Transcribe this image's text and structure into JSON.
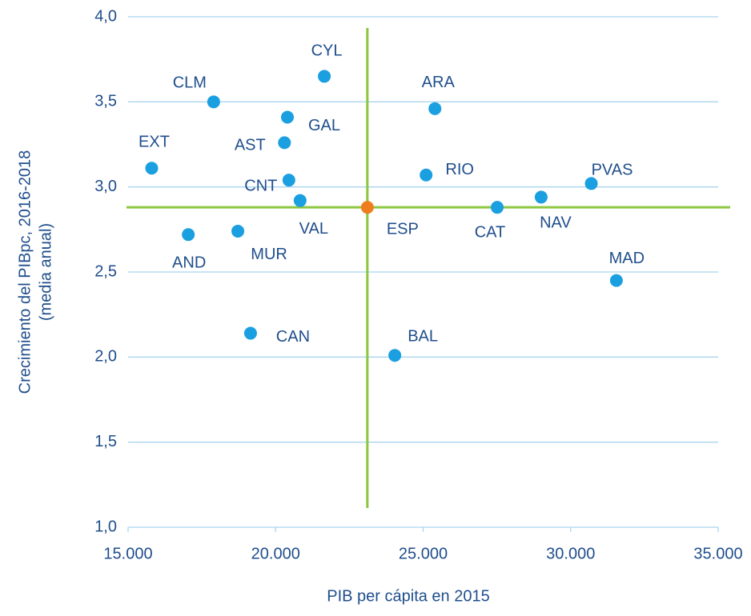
{
  "chart_data": {
    "type": "scatter",
    "xlabel": "PIB per cápita en 2015",
    "ylabel": [
      "Crecimiento del PIBpc, 2016-2018",
      "(media anual)"
    ],
    "labels": [
      "CYL",
      "CLM",
      "ARA",
      "GAL",
      "AST",
      "EXT",
      "RIO",
      "PVAS",
      "CNT",
      "VAL",
      "NAV",
      "ESP",
      "CAT",
      "AND",
      "MUR",
      "MAD",
      "CAN",
      "BAL"
    ],
    "x": [
      21650,
      17900,
      25400,
      20400,
      20300,
      15800,
      25100,
      30700,
      20450,
      20830,
      29000,
      23110,
      27510,
      17040,
      18720,
      31550,
      19150,
      24040
    ],
    "y": [
      3.65,
      3.5,
      3.46,
      3.41,
      3.26,
      3.11,
      3.07,
      3.02,
      3.04,
      2.92,
      2.94,
      2.88,
      2.88,
      2.72,
      2.74,
      2.45,
      2.14,
      2.01
    ],
    "colors": [
      "#1a9fe0",
      "#1a9fe0",
      "#1a9fe0",
      "#1a9fe0",
      "#1a9fe0",
      "#1a9fe0",
      "#1a9fe0",
      "#1a9fe0",
      "#1a9fe0",
      "#1a9fe0",
      "#1a9fe0",
      "#ee7d1f",
      "#1a9fe0",
      "#1a9fe0",
      "#1a9fe0",
      "#1a9fe0",
      "#1a9fe0",
      "#1a9fe0"
    ],
    "reference_color": "#8cc63f",
    "xlim": [
      15000,
      35000
    ],
    "xticks": [
      {
        "value": 15000,
        "label": "15.000"
      },
      {
        "value": 20000,
        "label": "20.000"
      },
      {
        "value": 25000,
        "label": "25.000"
      },
      {
        "value": 30000,
        "label": "30.000"
      },
      {
        "value": 35000,
        "label": "35.000"
      }
    ],
    "ylim": [
      1,
      4
    ],
    "yticks": [
      {
        "value": 1,
        "label": "1,0"
      },
      {
        "value": 1.5,
        "label": "1,5"
      },
      {
        "value": 2,
        "label": "2,0"
      },
      {
        "value": 2.5,
        "label": "2,5"
      },
      {
        "value": 3,
        "label": "3,0"
      },
      {
        "value": 3.5,
        "label": "3,5"
      },
      {
        "value": 4,
        "label": "4,0"
      }
    ],
    "grid": true
  }
}
